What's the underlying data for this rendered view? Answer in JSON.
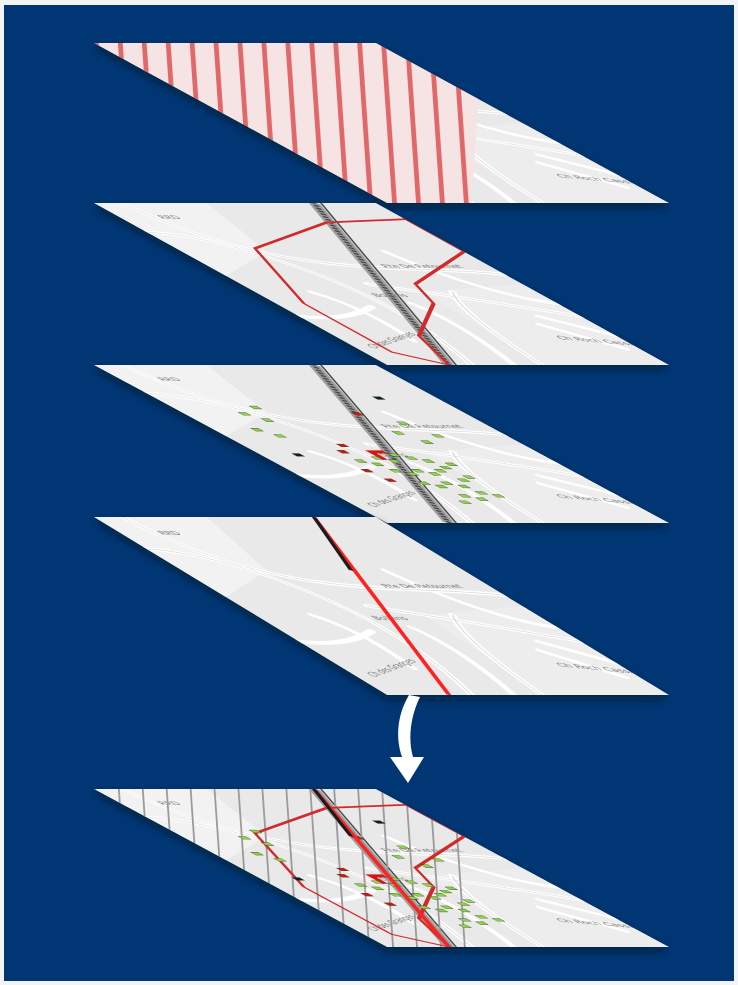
{
  "colors": {
    "background": "#003673",
    "map_base": "#e9e9e9",
    "map_base_light": "#f2f2f2",
    "road": "#ffffff",
    "rail": "#4a4a4a",
    "hatch_zone": "#e06767",
    "zone_outline": "#d22a2a",
    "building_green": "#8fd24a",
    "building_red": "#d01818",
    "building_dark": "#0d1b2f",
    "arrow": "#ffffff"
  },
  "map_labels": {
    "street_east": "Rte De Retournet",
    "street_mid": "Bollens",
    "street_granges": "Ch des Granges",
    "street_south": "Ch Roch Cassis",
    "label_a": "RRD"
  },
  "layers": [
    {
      "id": "hazard-zone-layer",
      "content": "hatched hazard zone"
    },
    {
      "id": "perimeter-layer",
      "content": "red perimeter outline"
    },
    {
      "id": "buildings-layer",
      "content": "buildings"
    },
    {
      "id": "railway-layer",
      "content": "railway line"
    },
    {
      "id": "combined-layer",
      "content": "overlay result"
    }
  ],
  "arrow_icon": "down-arrow-icon"
}
